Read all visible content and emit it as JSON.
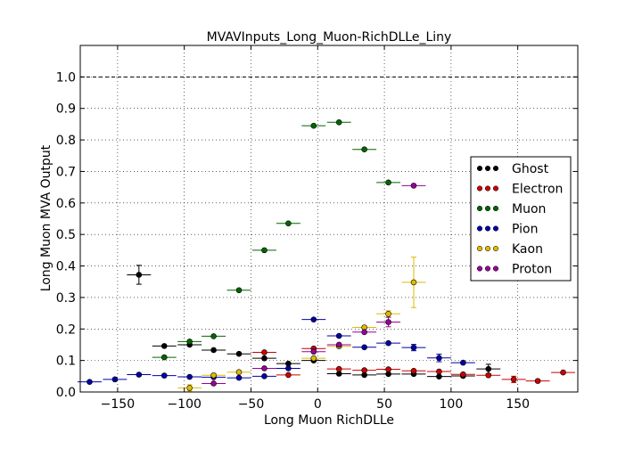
{
  "chart_data": {
    "type": "scatter",
    "title": "MVAVInputs_Long_Muon-RichDLLe_Liny",
    "xlabel": "Long Muon RichDLLe",
    "ylabel": "Long Muon MVA Output",
    "xlim": [
      -178,
      195
    ],
    "ylim": [
      0.0,
      1.1
    ],
    "xticks": [
      -150,
      -100,
      -50,
      0,
      50,
      100,
      150
    ],
    "xtick_labels": [
      "−150",
      "−100",
      "−50",
      "0",
      "50",
      "100",
      "150"
    ],
    "yticks": [
      0.0,
      0.1,
      0.2,
      0.3,
      0.4,
      0.5,
      0.6,
      0.7,
      0.8,
      0.9,
      1.0
    ],
    "ytick_labels": [
      "0.0",
      "0.1",
      "0.2",
      "0.3",
      "0.4",
      "0.5",
      "0.6",
      "0.7",
      "0.8",
      "0.9",
      "1.0"
    ],
    "grid": true,
    "reference_line": 1.0,
    "legend_position": "center-right",
    "series": [
      {
        "name": "Ghost",
        "color": "#000000",
        "xerr": 9,
        "points": [
          {
            "x": -134,
            "y": 0.372,
            "yerr": 0.03
          },
          {
            "x": -115,
            "y": 0.146,
            "yerr": 0.006
          },
          {
            "x": -96,
            "y": 0.15,
            "yerr": 0.006
          },
          {
            "x": -78,
            "y": 0.133,
            "yerr": 0.005
          },
          {
            "x": -59,
            "y": 0.121,
            "yerr": 0.004
          },
          {
            "x": -40,
            "y": 0.107,
            "yerr": 0.004
          },
          {
            "x": -22,
            "y": 0.09,
            "yerr": 0.004
          },
          {
            "x": -3,
            "y": 0.1,
            "yerr": 0.004
          },
          {
            "x": 16,
            "y": 0.058,
            "yerr": 0.003
          },
          {
            "x": 35,
            "y": 0.054,
            "yerr": 0.003
          },
          {
            "x": 53,
            "y": 0.057,
            "yerr": 0.003
          },
          {
            "x": 72,
            "y": 0.057,
            "yerr": 0.003
          },
          {
            "x": 91,
            "y": 0.049,
            "yerr": 0.003
          },
          {
            "x": 109,
            "y": 0.051,
            "yerr": 0.004
          },
          {
            "x": 128,
            "y": 0.073,
            "yerr": 0.015
          }
        ]
      },
      {
        "name": "Electron",
        "color": "#cc0000",
        "xerr": 9,
        "points": [
          {
            "x": -40,
            "y": 0.126,
            "yerr": 0.004
          },
          {
            "x": -22,
            "y": 0.054,
            "yerr": 0.003
          },
          {
            "x": -3,
            "y": 0.138,
            "yerr": 0.004
          },
          {
            "x": 16,
            "y": 0.073,
            "yerr": 0.003
          },
          {
            "x": 35,
            "y": 0.069,
            "yerr": 0.003
          },
          {
            "x": 53,
            "y": 0.072,
            "yerr": 0.003
          },
          {
            "x": 72,
            "y": 0.067,
            "yerr": 0.003
          },
          {
            "x": 91,
            "y": 0.065,
            "yerr": 0.003
          },
          {
            "x": 109,
            "y": 0.056,
            "yerr": 0.004
          },
          {
            "x": 128,
            "y": 0.053,
            "yerr": 0.004
          },
          {
            "x": 147,
            "y": 0.04,
            "yerr": 0.01
          },
          {
            "x": 165,
            "y": 0.035,
            "yerr": 0.004
          },
          {
            "x": 184,
            "y": 0.062,
            "yerr": 0.004
          }
        ]
      },
      {
        "name": "Muon",
        "color": "#006600",
        "xerr": 9,
        "points": [
          {
            "x": -115,
            "y": 0.11,
            "yerr": 0.005
          },
          {
            "x": -96,
            "y": 0.16,
            "yerr": 0.005
          },
          {
            "x": -78,
            "y": 0.177,
            "yerr": 0.004
          },
          {
            "x": -59,
            "y": 0.323,
            "yerr": 0.004
          },
          {
            "x": -40,
            "y": 0.45,
            "yerr": 0.004
          },
          {
            "x": -22,
            "y": 0.535,
            "yerr": 0.004
          },
          {
            "x": -3,
            "y": 0.845,
            "yerr": 0.004
          },
          {
            "x": 16,
            "y": 0.856,
            "yerr": 0.004
          },
          {
            "x": 35,
            "y": 0.77,
            "yerr": 0.004
          },
          {
            "x": 53,
            "y": 0.665,
            "yerr": 0.004
          }
        ]
      },
      {
        "name": "Pion",
        "color": "#0000aa",
        "xerr": 9,
        "points": [
          {
            "x": -171,
            "y": 0.032,
            "yerr": 0.002
          },
          {
            "x": -152,
            "y": 0.04,
            "yerr": 0.002
          },
          {
            "x": -134,
            "y": 0.055,
            "yerr": 0.002
          },
          {
            "x": -115,
            "y": 0.052,
            "yerr": 0.002
          },
          {
            "x": -96,
            "y": 0.048,
            "yerr": 0.002
          },
          {
            "x": -78,
            "y": 0.047,
            "yerr": 0.002
          },
          {
            "x": -59,
            "y": 0.045,
            "yerr": 0.002
          },
          {
            "x": -40,
            "y": 0.05,
            "yerr": 0.002
          },
          {
            "x": -22,
            "y": 0.075,
            "yerr": 0.003
          },
          {
            "x": -3,
            "y": 0.23,
            "yerr": 0.004
          },
          {
            "x": 16,
            "y": 0.178,
            "yerr": 0.004
          },
          {
            "x": 35,
            "y": 0.142,
            "yerr": 0.004
          },
          {
            "x": 53,
            "y": 0.155,
            "yerr": 0.004
          },
          {
            "x": 72,
            "y": 0.141,
            "yerr": 0.01
          },
          {
            "x": 91,
            "y": 0.108,
            "yerr": 0.012
          },
          {
            "x": 109,
            "y": 0.093,
            "yerr": 0.005
          }
        ]
      },
      {
        "name": "Kaon",
        "color": "#ddbb00",
        "xerr": 9,
        "points": [
          {
            "x": -96,
            "y": 0.013,
            "yerr": 0.01
          },
          {
            "x": -78,
            "y": 0.053,
            "yerr": 0.005
          },
          {
            "x": -59,
            "y": 0.063,
            "yerr": 0.004
          },
          {
            "x": -3,
            "y": 0.107,
            "yerr": 0.004
          },
          {
            "x": 16,
            "y": 0.145,
            "yerr": 0.005
          },
          {
            "x": 35,
            "y": 0.205,
            "yerr": 0.006
          },
          {
            "x": 53,
            "y": 0.248,
            "yerr": 0.01
          },
          {
            "x": 72,
            "y": 0.348,
            "yerr": 0.08
          }
        ]
      },
      {
        "name": "Proton",
        "color": "#990099",
        "xerr": 9,
        "points": [
          {
            "x": -78,
            "y": 0.027,
            "yerr": 0.003
          },
          {
            "x": -40,
            "y": 0.075,
            "yerr": 0.003
          },
          {
            "x": -3,
            "y": 0.128,
            "yerr": 0.004
          },
          {
            "x": 16,
            "y": 0.15,
            "yerr": 0.004
          },
          {
            "x": 35,
            "y": 0.19,
            "yerr": 0.005
          },
          {
            "x": 53,
            "y": 0.222,
            "yerr": 0.015
          },
          {
            "x": 72,
            "y": 0.655,
            "yerr": 0.005
          }
        ]
      }
    ]
  }
}
